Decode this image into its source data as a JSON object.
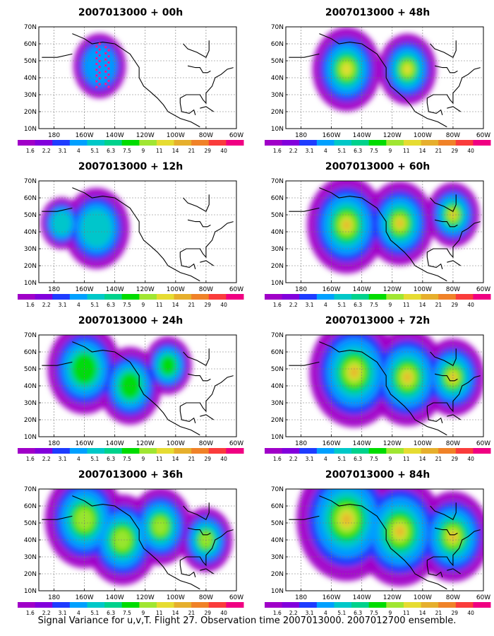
{
  "panels": [
    {
      "title": "2007013000 + 00h",
      "hour": 0
    },
    {
      "title": "2007013000 + 48h",
      "hour": 48
    },
    {
      "title": "2007013000 + 12h",
      "hour": 12
    },
    {
      "title": "2007013000 + 60h",
      "hour": 60
    },
    {
      "title": "2007013000 + 24h",
      "hour": 24
    },
    {
      "title": "2007013000 + 72h",
      "hour": 72
    },
    {
      "title": "2007013000 + 36h",
      "hour": 36
    },
    {
      "title": "2007013000 + 84h",
      "hour": 84
    }
  ],
  "lat_labels": [
    "70N",
    "60N",
    "50N",
    "40N",
    "30N",
    "20N",
    "10N"
  ],
  "lon_labels": [
    "180",
    "160W",
    "140W",
    "120W",
    "100W",
    "80W",
    "60W"
  ],
  "colorbar": {
    "labels": [
      "1.6",
      "2.2",
      "3.1",
      "4",
      "5.1",
      "6.3",
      "7.5",
      "9",
      "11",
      "14",
      "21",
      "29",
      "40"
    ],
    "colors": [
      "#a000c8",
      "#8200dc",
      "#1e3cff",
      "#00a0ff",
      "#00c8c8",
      "#00d28c",
      "#00dc00",
      "#a0e632",
      "#e6dc32",
      "#e6af2d",
      "#f08228",
      "#fa3c3c",
      "#f00082"
    ]
  },
  "observation_points_color": "#ff1493",
  "footer": "Signal Variance for u,v,T. Flight 27. Observation time 2007013000. 2007012700 ensemble."
}
